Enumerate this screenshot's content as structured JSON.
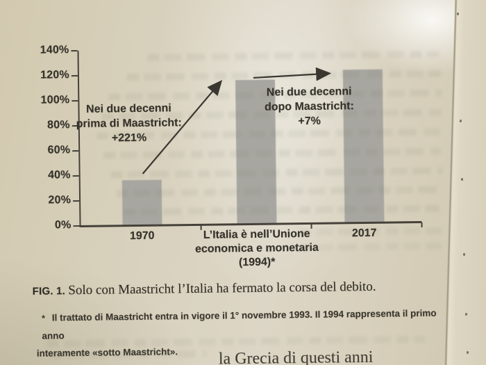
{
  "page": {
    "bottom_partial_text": "la Grecia di questi anni"
  },
  "figure": {
    "caption_label": "FIG. 1.",
    "caption_text": "Solo con Maastricht l’Italia ha fermato la corsa del debito.",
    "footnote_marker": "*",
    "footnote_line1": "Il trattato di Maastricht entra in vigore il 1° novembre 1993. Il 1994 rappresenta il primo anno",
    "footnote_line2": "interamente «sotto Maastricht»."
  },
  "chart_data": {
    "type": "bar",
    "title": "",
    "xlabel": "",
    "ylabel": "",
    "unit": "%",
    "categories": [
      "1970",
      "L’Italia è nell’Unione economica e monetaria (1994)*",
      "2017"
    ],
    "category_label_lines": [
      [
        "1970"
      ],
      [
        "L’Italia è nell’Unione",
        "economica e monetaria",
        "(1994)*"
      ],
      [
        "2017"
      ]
    ],
    "values": [
      36,
      115,
      122
    ],
    "ylim": [
      0,
      140
    ],
    "ytick_step": 20,
    "ytick_labels": [
      "0%",
      "20%",
      "40%",
      "60%",
      "80%",
      "100%",
      "120%",
      "140%"
    ],
    "grid": false,
    "legend": "none",
    "bar_color": "#a8a6a0",
    "axis_color": "#45413a",
    "annotations": [
      {
        "lines": [
          "Nei due decenni",
          "prima di Maastricht:",
          "+221%"
        ],
        "arrow": "diagonal-up-right-to-1994-bar"
      },
      {
        "lines": [
          "Nei due decenni",
          "dopo Maastricht:",
          "+7%"
        ],
        "arrow": "horizontal-right-to-2017-bar"
      }
    ]
  }
}
